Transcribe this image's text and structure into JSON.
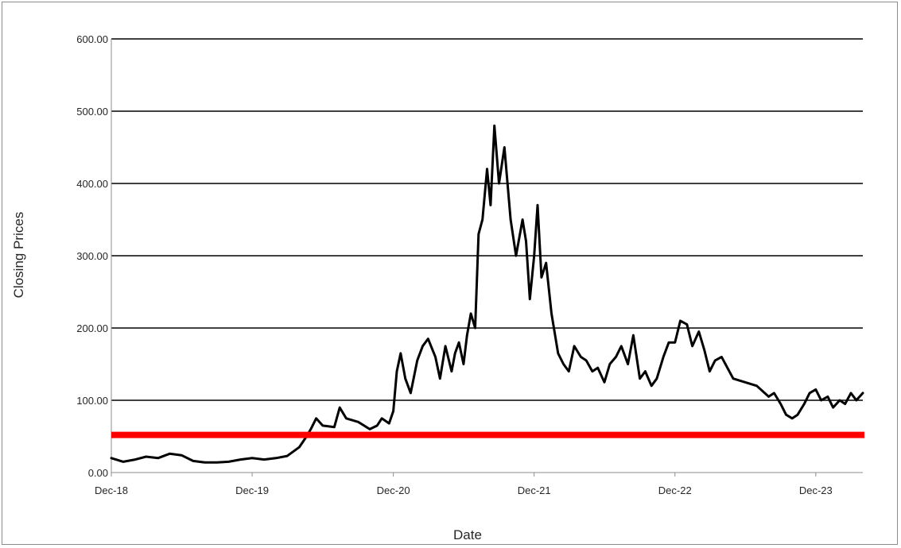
{
  "chart_data": {
    "type": "line",
    "title": "",
    "xlabel": "Date",
    "ylabel": "Closing Prices",
    "ylim": [
      0,
      600
    ],
    "xlim": [
      "2018-12",
      "2024-04"
    ],
    "y_ticks": [
      "0.00",
      "100.00",
      "200.00",
      "300.00",
      "400.00",
      "500.00",
      "600.00"
    ],
    "x_ticks": [
      {
        "date": "2018-12",
        "label": "Dec-18"
      },
      {
        "date": "2019-12",
        "label": "Dec-19"
      },
      {
        "date": "2020-12",
        "label": "Dec-20"
      },
      {
        "date": "2021-12",
        "label": "Dec-21"
      },
      {
        "date": "2022-12",
        "label": "Dec-22"
      },
      {
        "date": "2023-12",
        "label": "Dec-23"
      }
    ],
    "grid": "horizontal",
    "legend": "none",
    "series": [
      {
        "color": "#000000",
        "x": [
          "2018-12-01",
          "2019-01-01",
          "2019-02-01",
          "2019-03-01",
          "2019-04-01",
          "2019-05-01",
          "2019-06-01",
          "2019-07-01",
          "2019-08-01",
          "2019-09-01",
          "2019-10-01",
          "2019-11-01",
          "2019-12-01",
          "2020-01-01",
          "2020-02-01",
          "2020-03-01",
          "2020-04-01",
          "2020-04-20",
          "2020-05-01",
          "2020-05-15",
          "2020-06-01",
          "2020-07-01",
          "2020-07-15",
          "2020-08-01",
          "2020-09-01",
          "2020-10-01",
          "2020-10-20",
          "2020-11-01",
          "2020-11-20",
          "2020-12-01",
          "2020-12-10",
          "2020-12-20",
          "2021-01-01",
          "2021-01-15",
          "2021-02-01",
          "2021-02-15",
          "2021-03-01",
          "2021-03-20",
          "2021-04-01",
          "2021-04-15",
          "2021-05-01",
          "2021-05-10",
          "2021-05-20",
          "2021-06-01",
          "2021-06-10",
          "2021-06-20",
          "2021-07-01",
          "2021-07-10",
          "2021-07-20",
          "2021-08-01",
          "2021-08-10",
          "2021-08-20",
          "2021-09-01",
          "2021-09-15",
          "2021-10-01",
          "2021-10-15",
          "2021-11-01",
          "2021-11-10",
          "2021-11-20",
          "2021-12-01",
          "2021-12-10",
          "2021-12-20",
          "2022-01-01",
          "2022-01-15",
          "2022-02-01",
          "2022-02-15",
          "2022-03-01",
          "2022-03-15",
          "2022-04-01",
          "2022-04-15",
          "2022-05-01",
          "2022-05-15",
          "2022-06-01",
          "2022-06-15",
          "2022-07-01",
          "2022-07-15",
          "2022-08-01",
          "2022-08-15",
          "2022-09-01",
          "2022-09-15",
          "2022-10-01",
          "2022-10-15",
          "2022-11-01",
          "2022-11-15",
          "2022-12-01",
          "2022-12-15",
          "2023-01-01",
          "2023-01-15",
          "2023-02-01",
          "2023-02-15",
          "2023-03-01",
          "2023-03-15",
          "2023-04-01",
          "2023-05-01",
          "2023-06-01",
          "2023-07-01",
          "2023-08-01",
          "2023-08-15",
          "2023-09-01",
          "2023-09-15",
          "2023-10-01",
          "2023-10-15",
          "2023-11-01",
          "2023-11-15",
          "2023-12-01",
          "2023-12-15",
          "2024-01-01",
          "2024-01-15",
          "2024-02-01",
          "2024-02-15",
          "2024-03-01",
          "2024-03-15",
          "2024-04-01"
        ],
        "y": [
          20,
          15,
          18,
          22,
          20,
          26,
          24,
          16,
          14,
          14,
          15,
          18,
          20,
          18,
          20,
          23,
          35,
          50,
          60,
          75,
          65,
          63,
          90,
          75,
          70,
          60,
          65,
          75,
          68,
          85,
          140,
          165,
          130,
          110,
          155,
          175,
          185,
          160,
          130,
          175,
          140,
          165,
          180,
          150,
          190,
          220,
          200,
          330,
          350,
          420,
          370,
          480,
          400,
          450,
          350,
          300,
          350,
          320,
          240,
          300,
          370,
          270,
          290,
          220,
          165,
          150,
          140,
          175,
          160,
          155,
          140,
          145,
          125,
          150,
          160,
          175,
          150,
          190,
          130,
          140,
          120,
          130,
          160,
          180,
          180,
          210,
          205,
          175,
          195,
          170,
          140,
          155,
          160,
          130,
          125,
          120,
          105,
          110,
          95,
          80,
          75,
          80,
          95,
          110,
          115,
          100,
          105,
          90,
          100,
          95,
          110,
          100,
          110
        ]
      }
    ],
    "reference_line": {
      "value": 52,
      "color": "#ff0000"
    }
  }
}
